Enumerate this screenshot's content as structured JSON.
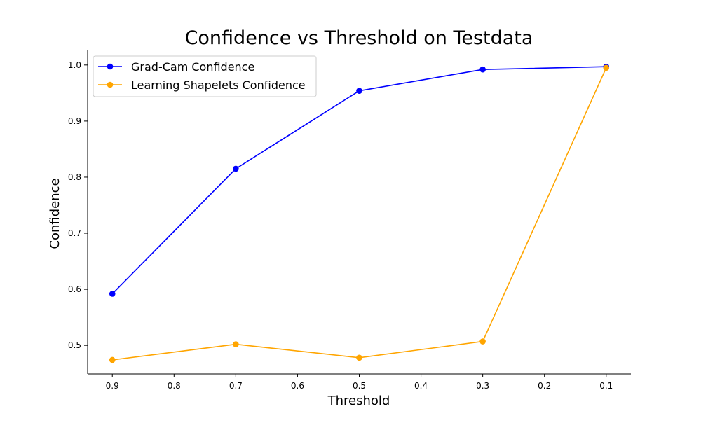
{
  "chart_data": {
    "type": "line",
    "title": "Confidence vs Threshold on Testdata",
    "xlabel": "Threshold",
    "ylabel": "Confidence",
    "x": [
      0.9,
      0.7,
      0.5,
      0.3,
      0.1
    ],
    "x_inverted": true,
    "xlim": [
      0.94,
      0.06
    ],
    "ylim": [
      0.449,
      1.026
    ],
    "x_ticks": [
      0.9,
      0.8,
      0.7,
      0.6,
      0.5,
      0.4,
      0.3,
      0.2,
      0.1
    ],
    "x_tick_labels": [
      "0.9",
      "0.8",
      "0.7",
      "0.6",
      "0.5",
      "0.4",
      "0.3",
      "0.2",
      "0.1"
    ],
    "y_ticks": [
      0.5,
      0.6,
      0.7,
      0.8,
      0.9,
      1.0
    ],
    "y_tick_labels": [
      "0.5",
      "0.6",
      "0.7",
      "0.8",
      "0.9",
      "1.0"
    ],
    "grid": false,
    "legend_position": "top-left",
    "series": [
      {
        "name": "Grad-Cam Confidence",
        "color": "#0000ff",
        "marker": "circle",
        "values": [
          0.592,
          0.815,
          0.954,
          0.992,
          0.997
        ]
      },
      {
        "name": "Learning Shapelets Confidence",
        "color": "#ffa500",
        "marker": "circle",
        "values": [
          0.474,
          0.502,
          0.478,
          0.507,
          0.995
        ]
      }
    ]
  }
}
